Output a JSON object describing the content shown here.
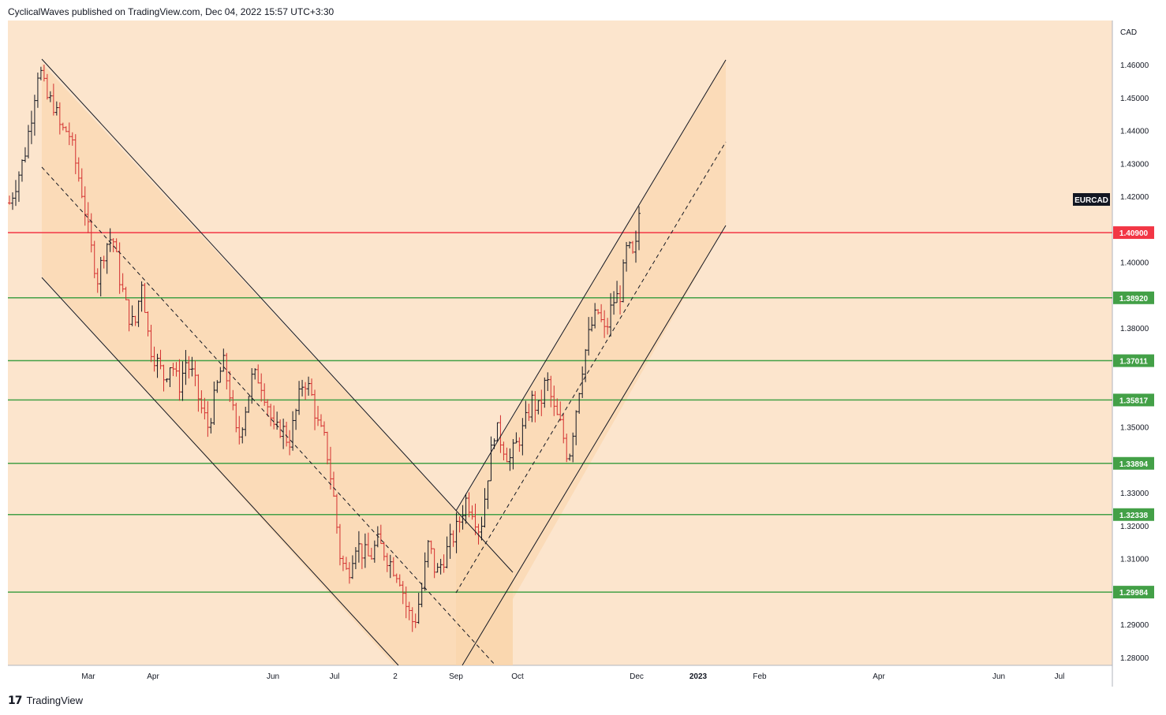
{
  "header": {
    "publish_info": "CyclicalWaves published on TradingView.com, Dec 04, 2022 15:57 UTC+3:30"
  },
  "footer": {
    "brand": "TradingView"
  },
  "colors": {
    "background": "#fce5cd",
    "channel_fill": "#f9d3a8",
    "bullish_bar": "#131722",
    "bearish_bar": "#d32f2f",
    "resistance_line": "#f23645",
    "support_line": "#43a047",
    "trendline": "#131722",
    "symbol_badge": "#131722"
  },
  "chart_data": {
    "type": "ohlc",
    "symbol": "EURCAD",
    "currency": "CAD",
    "ylim": [
      1.275,
      1.472
    ],
    "y_ticks": [
      "1.46000",
      "1.45000",
      "1.44000",
      "1.43000",
      "1.42000",
      "1.40000",
      "1.38000",
      "1.35000",
      "1.33000",
      "1.32000",
      "1.31000",
      "1.29000",
      "1.28000"
    ],
    "x_ticks": [
      "Mar",
      "Apr",
      "Jun",
      "Jul",
      "2",
      "Sep",
      "Oct",
      "Dec",
      "2023",
      "Feb",
      "Apr",
      "Jun",
      "Jul"
    ],
    "horizontal_levels": [
      {
        "value": 1.409,
        "label": "1.40900",
        "type": "resistance"
      },
      {
        "value": 1.3892,
        "label": "1.38920",
        "type": "support"
      },
      {
        "value": 1.37011,
        "label": "1.37011",
        "type": "support"
      },
      {
        "value": 1.35817,
        "label": "1.35817",
        "type": "support"
      },
      {
        "value": 1.33894,
        "label": "1.33894",
        "type": "support"
      },
      {
        "value": 1.32338,
        "label": "1.32338",
        "type": "support"
      },
      {
        "value": 1.29984,
        "label": "1.29984",
        "type": "support"
      }
    ],
    "price_path": [
      [
        0,
        1.418
      ],
      [
        5,
        1.425
      ],
      [
        10,
        1.432
      ],
      [
        15,
        1.445
      ],
      [
        20,
        1.46
      ],
      [
        25,
        1.45
      ],
      [
        30,
        1.448
      ],
      [
        35,
        1.44
      ],
      [
        40,
        1.44
      ],
      [
        45,
        1.43
      ],
      [
        50,
        1.42
      ],
      [
        55,
        1.405
      ],
      [
        60,
        1.395
      ],
      [
        65,
        1.405
      ],
      [
        70,
        1.408
      ],
      [
        75,
        1.395
      ],
      [
        80,
        1.385
      ],
      [
        85,
        1.38
      ],
      [
        90,
        1.395
      ],
      [
        95,
        1.375
      ],
      [
        100,
        1.37
      ],
      [
        105,
        1.365
      ],
      [
        110,
        1.37
      ],
      [
        115,
        1.362
      ],
      [
        120,
        1.37
      ],
      [
        125,
        1.365
      ],
      [
        130,
        1.356
      ],
      [
        135,
        1.35
      ],
      [
        140,
        1.36
      ],
      [
        145,
        1.37
      ],
      [
        150,
        1.36
      ],
      [
        155,
        1.345
      ],
      [
        160,
        1.355
      ],
      [
        165,
        1.365
      ],
      [
        170,
        1.365
      ],
      [
        175,
        1.358
      ],
      [
        180,
        1.348
      ],
      [
        185,
        1.35
      ],
      [
        190,
        1.345
      ],
      [
        195,
        1.355
      ],
      [
        200,
        1.365
      ],
      [
        205,
        1.36
      ],
      [
        210,
        1.35
      ],
      [
        215,
        1.345
      ],
      [
        220,
        1.33
      ],
      [
        225,
        1.31
      ],
      [
        230,
        1.305
      ],
      [
        235,
        1.315
      ],
      [
        240,
        1.312
      ],
      [
        245,
        1.31
      ],
      [
        250,
        1.315
      ],
      [
        255,
        1.312
      ],
      [
        260,
        1.308
      ],
      [
        265,
        1.305
      ],
      [
        270,
        1.295
      ],
      [
        275,
        1.29
      ],
      [
        280,
        1.3
      ],
      [
        285,
        1.315
      ],
      [
        290,
        1.305
      ],
      [
        295,
        1.31
      ],
      [
        300,
        1.315
      ],
      [
        305,
        1.32
      ],
      [
        310,
        1.328
      ],
      [
        315,
        1.325
      ],
      [
        320,
        1.318
      ],
      [
        325,
        1.335
      ],
      [
        330,
        1.35
      ],
      [
        335,
        1.345
      ],
      [
        340,
        1.34
      ],
      [
        345,
        1.345
      ],
      [
        350,
        1.35
      ],
      [
        355,
        1.358
      ],
      [
        360,
        1.355
      ],
      [
        365,
        1.365
      ],
      [
        370,
        1.355
      ],
      [
        375,
        1.35
      ],
      [
        380,
        1.34
      ],
      [
        385,
        1.355
      ],
      [
        390,
        1.37
      ],
      [
        395,
        1.38
      ],
      [
        400,
        1.385
      ],
      [
        405,
        1.378
      ],
      [
        410,
        1.388
      ],
      [
        415,
        1.39
      ],
      [
        420,
        1.405
      ],
      [
        425,
        1.4
      ],
      [
        428,
        1.415
      ]
    ],
    "price_path_x_units": "trading-day index from chart start"
  }
}
